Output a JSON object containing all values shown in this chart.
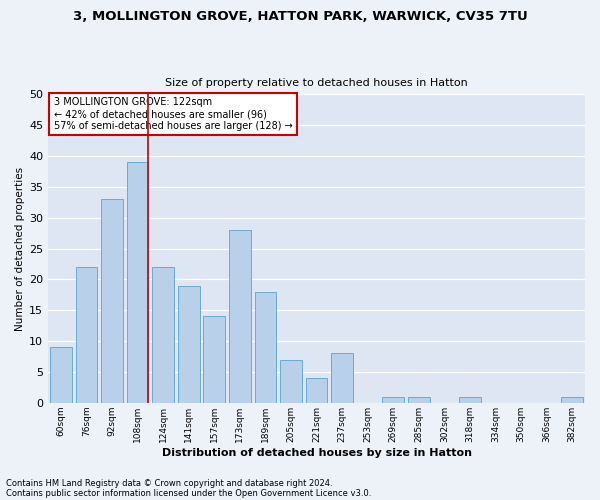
{
  "title1": "3, MOLLINGTON GROVE, HATTON PARK, WARWICK, CV35 7TU",
  "title2": "Size of property relative to detached houses in Hatton",
  "xlabel": "Distribution of detached houses by size in Hatton",
  "ylabel": "Number of detached properties",
  "bar_labels": [
    "60sqm",
    "76sqm",
    "92sqm",
    "108sqm",
    "124sqm",
    "141sqm",
    "157sqm",
    "173sqm",
    "189sqm",
    "205sqm",
    "221sqm",
    "237sqm",
    "253sqm",
    "269sqm",
    "285sqm",
    "302sqm",
    "318sqm",
    "334sqm",
    "350sqm",
    "366sqm",
    "382sqm"
  ],
  "bar_values": [
    9,
    22,
    33,
    39,
    22,
    19,
    14,
    28,
    18,
    7,
    4,
    8,
    0,
    1,
    1,
    0,
    1,
    0,
    0,
    0,
    1
  ],
  "bar_color": "#b8d0ea",
  "bar_edgecolor": "#6aaad4",
  "property_line_color": "#cc0000",
  "annotation_text": "3 MOLLINGTON GROVE: 122sqm\n← 42% of detached houses are smaller (96)\n57% of semi-detached houses are larger (128) →",
  "annotation_box_edgecolor": "#cc0000",
  "ylim": [
    0,
    50
  ],
  "yticks": [
    0,
    5,
    10,
    15,
    20,
    25,
    30,
    35,
    40,
    45,
    50
  ],
  "footer1": "Contains HM Land Registry data © Crown copyright and database right 2024.",
  "footer2": "Contains public sector information licensed under the Open Government Licence v3.0.",
  "bg_color": "#edf2f9",
  "axes_bg_color": "#dde6f2"
}
